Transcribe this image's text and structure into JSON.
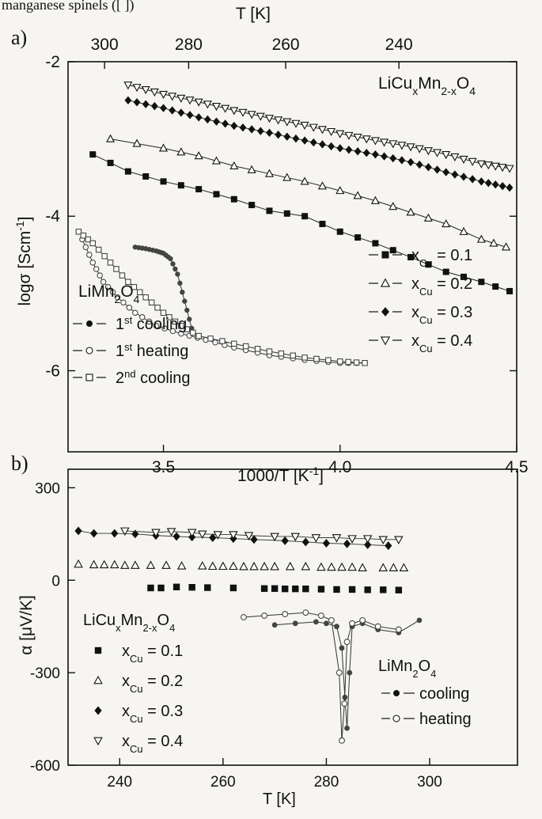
{
  "header_fragment": "manganese spinels ([ ])",
  "chart_data": [
    {
      "panel": "a)",
      "type": "scatter",
      "compound_label": "LiCuₓMn₂₋ₓO₄",
      "xlabel": "1000/T [K⁻¹]",
      "ylabel": "logσ [Scm⁻¹]",
      "top_xlabel": "T [K]",
      "xlim": [
        3.23,
        4.5
      ],
      "ylim": [
        -7.05,
        -2.0
      ],
      "xticks": [
        3.5,
        4.0,
        4.5
      ],
      "yticks": [
        -2,
        -4,
        -6
      ],
      "top_ticks": [
        300,
        280,
        260,
        240
      ],
      "series": [
        {
          "name": "xCu = 0.1",
          "marker": "square-filled",
          "x": [
            3.3,
            3.4,
            3.5,
            3.6,
            3.7,
            3.8,
            3.9,
            4.0,
            4.1,
            4.2,
            4.3,
            4.4,
            4.48
          ],
          "y": [
            -3.2,
            -3.42,
            -3.55,
            -3.65,
            -3.78,
            -3.93,
            -4.0,
            -4.2,
            -4.35,
            -4.53,
            -4.72,
            -4.85,
            -4.97
          ]
        },
        {
          "name": "xCu = 0.2",
          "marker": "triangle-up-open",
          "x": [
            3.35,
            3.5,
            3.6,
            3.7,
            3.8,
            3.9,
            4.0,
            4.1,
            4.2,
            4.3,
            4.4,
            4.47
          ],
          "y": [
            -3.0,
            -3.12,
            -3.22,
            -3.35,
            -3.45,
            -3.55,
            -3.67,
            -3.8,
            -3.95,
            -4.1,
            -4.3,
            -4.4
          ]
        },
        {
          "name": "xCu = 0.3",
          "marker": "diamond-filled",
          "x": [
            3.4,
            3.5,
            3.6,
            3.7,
            3.8,
            3.9,
            4.0,
            4.1,
            4.2,
            4.3,
            4.4,
            4.48
          ],
          "y": [
            -2.5,
            -2.6,
            -2.72,
            -2.83,
            -2.92,
            -3.02,
            -3.12,
            -3.2,
            -3.3,
            -3.43,
            -3.55,
            -3.63
          ]
        },
        {
          "name": "xCu = 0.4",
          "marker": "triangle-down-open",
          "x": [
            3.4,
            3.5,
            3.6,
            3.7,
            3.8,
            3.9,
            4.0,
            4.1,
            4.2,
            4.3,
            4.4,
            4.48
          ],
          "y": [
            -2.3,
            -2.42,
            -2.52,
            -2.63,
            -2.73,
            -2.82,
            -2.93,
            -3.02,
            -3.1,
            -3.2,
            -3.32,
            -3.38
          ]
        }
      ],
      "limn2o4": {
        "label": "LiMn₂O₄",
        "series": [
          {
            "name": "1st cooling",
            "marker": "circle-filled",
            "x": [
              3.42,
              3.45,
              3.48,
              3.5,
              3.52,
              3.54,
              3.56,
              3.58
            ],
            "y": [
              -4.4,
              -4.42,
              -4.45,
              -4.48,
              -4.55,
              -4.75,
              -5.1,
              -5.45
            ]
          },
          {
            "name": "1st heating",
            "marker": "circle-open",
            "x": [
              3.27,
              3.3,
              3.33,
              3.37,
              3.42,
              3.48,
              3.55,
              3.62,
              3.7,
              3.8,
              3.9,
              4.0,
              4.07
            ],
            "y": [
              -4.3,
              -4.6,
              -4.85,
              -5.05,
              -5.25,
              -5.42,
              -5.52,
              -5.6,
              -5.7,
              -5.8,
              -5.86,
              -5.9,
              -5.9
            ]
          },
          {
            "name": "2nd cooling",
            "marker": "square-open",
            "x": [
              3.26,
              3.3,
              3.35,
              3.4,
              3.45,
              3.5,
              3.55,
              3.6,
              3.7,
              3.8,
              3.9,
              4.0,
              4.07
            ],
            "y": [
              -4.2,
              -4.35,
              -4.6,
              -4.85,
              -5.05,
              -5.25,
              -5.42,
              -5.55,
              -5.65,
              -5.75,
              -5.83,
              -5.88,
              -5.9
            ]
          }
        ]
      },
      "legend_labels": {
        "cu": [
          {
            "pre": "—",
            "mid": "—",
            "name": "x",
            "sub": "Cu",
            "val": " = 0.1"
          },
          {
            "pre": "—",
            "mid": "—",
            "name": "x",
            "sub": "Cu",
            "val": " = 0.2"
          },
          {
            "pre": "—",
            "mid": "—",
            "name": "x",
            "sub": "Cu",
            "val": " = 0.3"
          },
          {
            "pre": "—",
            "mid": "—",
            "name": "x",
            "sub": "Cu",
            "val": " = 0.4"
          }
        ],
        "mn": [
          {
            "ord": "1",
            "sup": "st",
            "txt": " cooling"
          },
          {
            "ord": "1",
            "sup": "st",
            "txt": " heating"
          },
          {
            "ord": "2",
            "sup": "nd",
            "txt": " cooling"
          }
        ]
      }
    },
    {
      "panel": "b)",
      "type": "scatter",
      "xlabel": "T [K]",
      "ylabel": "α [μV/K]",
      "xlim": [
        230,
        317
      ],
      "ylim": [
        -600,
        360
      ],
      "xticks": [
        240,
        260,
        280,
        300
      ],
      "yticks": [
        300,
        0,
        -300,
        -600
      ],
      "compound_label": "LiCuₓMn₂₋ₓO₄",
      "series": [
        {
          "name": "xCu = 0.1",
          "marker": "square-filled",
          "x": [
            246,
            248,
            251,
            254,
            257,
            262,
            268,
            270,
            272,
            274,
            276,
            279,
            282,
            285,
            288,
            291,
            294
          ],
          "y": [
            -25,
            -25,
            -22,
            -23,
            -24,
            -25,
            -27,
            -27,
            -28,
            -28,
            -28,
            -29,
            -30,
            -30,
            -31,
            -31,
            -32
          ]
        },
        {
          "name": "xCu = 0.2",
          "marker": "triangle-up-open",
          "x": [
            232,
            235,
            237,
            239,
            241,
            243,
            246,
            249,
            252,
            256,
            258,
            260,
            262,
            264,
            266,
            268,
            270,
            273,
            276,
            279,
            281,
            283,
            285,
            287,
            291,
            293,
            295
          ],
          "y": [
            52,
            50,
            50,
            50,
            48,
            48,
            48,
            48,
            46,
            46,
            45,
            45,
            45,
            44,
            44,
            44,
            44,
            44,
            44,
            42,
            42,
            42,
            42,
            40,
            40,
            40,
            40
          ]
        },
        {
          "name": "xCu = 0.3",
          "marker": "diamond-filled",
          "x": [
            232,
            235,
            239,
            243,
            247,
            251,
            254,
            258,
            262,
            266,
            272,
            276,
            280,
            284,
            288,
            292
          ],
          "y": [
            160,
            152,
            152,
            150,
            145,
            142,
            140,
            138,
            135,
            132,
            128,
            124,
            120,
            118,
            115,
            112
          ]
        },
        {
          "name": "xCu = 0.4",
          "marker": "triangle-down-open",
          "x": [
            241,
            247,
            250,
            254,
            256,
            259,
            262,
            265,
            270,
            274,
            278,
            282,
            285,
            288,
            291,
            294
          ],
          "y": [
            160,
            155,
            158,
            155,
            150,
            148,
            148,
            145,
            142,
            142,
            138,
            138,
            135,
            135,
            132,
            132
          ]
        }
      ],
      "limn2o4": {
        "label": "LiMn₂O₄",
        "series": [
          {
            "name": "cooling",
            "marker": "circle-filled",
            "x": [
              270,
              274,
              278,
              280,
              282,
              283,
              283.6,
              284,
              284.5,
              285,
              287,
              290,
              294,
              298
            ],
            "y": [
              -145,
              -140,
              -135,
              -140,
              -150,
              -220,
              -380,
              -480,
              -300,
              -150,
              -140,
              -160,
              -170,
              -130
            ]
          },
          {
            "name": "heating",
            "marker": "circle-open",
            "x": [
              264,
              268,
              272,
              276,
              279,
              281,
              282.5,
              283,
              283.5,
              284,
              285,
              287,
              290,
              294
            ],
            "y": [
              -120,
              -115,
              -110,
              -105,
              -115,
              -130,
              -300,
              -520,
              -400,
              -200,
              -140,
              -130,
              -150,
              -160
            ]
          }
        ]
      },
      "legend_labels": {
        "cu": [
          {
            "name": "x",
            "sub": "Cu",
            "val": " = 0.1"
          },
          {
            "name": "x",
            "sub": "Cu",
            "val": " = 0.2"
          },
          {
            "name": "x",
            "sub": "Cu",
            "val": " = 0.3"
          },
          {
            "name": "x",
            "sub": "Cu",
            "val": " = 0.4"
          }
        ],
        "mn": [
          "cooling",
          "heating"
        ]
      }
    }
  ]
}
